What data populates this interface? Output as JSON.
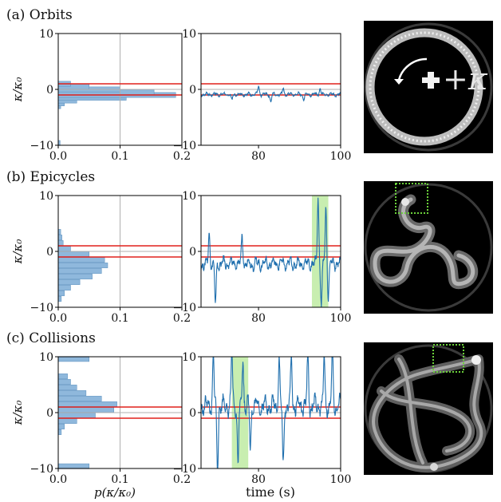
{
  "chart_data": [
    {
      "panel": "a",
      "panel_label": "(a) Orbits",
      "histogram": {
        "type": "bar",
        "orientation": "horizontal",
        "xlim": [
          0,
          0.2
        ],
        "ylim": [
          -10,
          10
        ],
        "xticks": [
          "0.0",
          "0.1",
          "0.2"
        ],
        "yticks": [
          "10",
          "0",
          "−10"
        ],
        "ylabel": "κ/κ₀",
        "bins_center": [
          -9.6,
          -3.0,
          -2.5,
          -2.0,
          -1.5,
          -1.0,
          -0.5,
          0.0,
          0.5,
          1.0
        ],
        "values": [
          0.003,
          0.004,
          0.01,
          0.03,
          0.11,
          0.19,
          0.155,
          0.1,
          0.05,
          0.02
        ],
        "red_lines": [
          1,
          -1
        ]
      },
      "timeseries": {
        "type": "line",
        "xlim": [
          66,
          100
        ],
        "ylim": [
          -10,
          10
        ],
        "xticks": [
          "80",
          "100"
        ],
        "yticks": [
          "10",
          "0",
          "−10"
        ],
        "red_lines": [
          1,
          -1
        ],
        "mean": -0.9,
        "amplitude": 0.35,
        "spikes": [
          [
            73.5,
            -2.0
          ],
          [
            80,
            0.5
          ],
          [
            83,
            -2.2
          ],
          [
            86,
            0.2
          ],
          [
            91,
            -1.8
          ],
          [
            95,
            0.3
          ]
        ]
      },
      "image": {
        "annotation": "+κ"
      }
    },
    {
      "panel": "b",
      "panel_label": "(b) Epicycles",
      "histogram": {
        "type": "bar",
        "orientation": "horizontal",
        "xlim": [
          0,
          0.2
        ],
        "ylim": [
          -10,
          10
        ],
        "xticks": [
          "0.0",
          "0.1",
          "0.2"
        ],
        "yticks": [
          "10",
          "0",
          "−10"
        ],
        "ylabel": "κ/κ₀",
        "bins_center": [
          -8.5,
          -7.5,
          -6.5,
          -5.5,
          -4.5,
          -3.5,
          -2.5,
          -1.5,
          -0.5,
          0.5,
          1.5,
          2.5,
          3.5
        ],
        "values": [
          0.005,
          0.01,
          0.02,
          0.035,
          0.055,
          0.07,
          0.08,
          0.075,
          0.05,
          0.02,
          0.008,
          0.006,
          0.004
        ],
        "red_lines": [
          1,
          -1
        ]
      },
      "timeseries": {
        "type": "line",
        "xlim": [
          66,
          100
        ],
        "ylim": [
          -10,
          10
        ],
        "xticks": [
          "80",
          "100"
        ],
        "yticks": [
          "10",
          "0",
          "−10"
        ],
        "red_lines": [
          1,
          -1
        ],
        "mean": -2.2,
        "amplitude": 1.2,
        "spikes": [
          [
            68,
            3.5
          ],
          [
            69.5,
            -10
          ],
          [
            76,
            2.5
          ],
          [
            84,
            -2
          ],
          [
            94.5,
            10
          ],
          [
            95.3,
            -9.5
          ],
          [
            96.4,
            8
          ],
          [
            97,
            -8
          ]
        ],
        "highlight": [
          93,
          97
        ]
      },
      "image": {}
    },
    {
      "panel": "c",
      "panel_label": "(c) Collisions",
      "histogram": {
        "type": "bar",
        "orientation": "horizontal",
        "xlim": [
          0,
          0.2
        ],
        "ylim": [
          -10,
          10
        ],
        "xticks": [
          "0.0",
          "0.1",
          "0.2"
        ],
        "yticks": [
          "10",
          "0",
          "−10"
        ],
        "ylabel": "κ/κ₀",
        "xlabel": "p(κ/κ₀)",
        "bins_center": [
          -9.6,
          -3.5,
          -2.5,
          -1.5,
          -0.5,
          0.5,
          1.5,
          2.5,
          3.5,
          4.5,
          5.5,
          6.5,
          9.6
        ],
        "values": [
          0.05,
          0.005,
          0.01,
          0.03,
          0.06,
          0.09,
          0.095,
          0.07,
          0.045,
          0.03,
          0.02,
          0.015,
          0.05
        ],
        "red_lines": [
          1,
          -1
        ]
      },
      "timeseries": {
        "type": "line",
        "xlim": [
          66,
          100
        ],
        "ylim": [
          -10,
          10
        ],
        "xticks": [
          "80",
          "100"
        ],
        "yticks": [
          "10",
          "0",
          "−10"
        ],
        "xlabel": "time (s)",
        "red_lines": [
          1,
          -1
        ],
        "mean": 1.2,
        "amplitude": 1.8,
        "spikes": [
          [
            69,
            10
          ],
          [
            70,
            -10
          ],
          [
            73.5,
            10
          ],
          [
            75,
            -9
          ],
          [
            76.2,
            10
          ],
          [
            78,
            -6
          ],
          [
            85,
            10
          ],
          [
            86,
            -10
          ],
          [
            88,
            10
          ],
          [
            92,
            10
          ],
          [
            96,
            10
          ],
          [
            98,
            10
          ]
        ],
        "highlight": [
          73.5,
          77.5
        ]
      },
      "image": {}
    }
  ]
}
